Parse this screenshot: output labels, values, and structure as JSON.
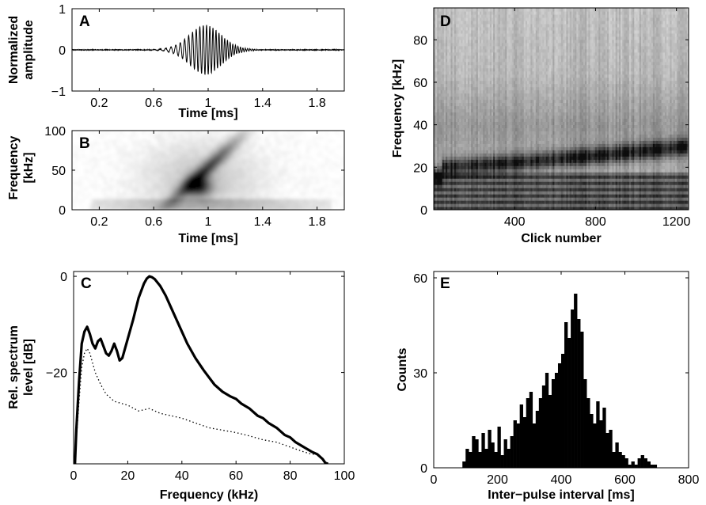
{
  "chart_data": [
    {
      "panel": "A",
      "type": "line",
      "title": "",
      "xlabel": "Time [ms]",
      "ylabel_lines": [
        "Normalized",
        "amplitude"
      ],
      "xlim": [
        0.0,
        2.0
      ],
      "ylim": [
        -1,
        1
      ],
      "xticks": [
        0.2,
        0.6,
        1,
        1.4,
        1.8
      ],
      "yticks": [
        -1,
        0,
        1
      ],
      "waveform": {
        "center_ms": 0.98,
        "width_ms": 0.16,
        "peak_amplitude": 0.55,
        "start_freq_khz": 22,
        "end_freq_khz": 60,
        "pre_onset_ms": 0.55,
        "post_tail_ms": 1.35
      },
      "series": [
        {
          "values_description": ""
        }
      ]
    },
    {
      "panel": "B",
      "type": "heatmap",
      "xlabel": "Time [ms]",
      "ylabel_lines": [
        "Frequency",
        "[kHz]"
      ],
      "xlim": [
        0.0,
        2.0
      ],
      "ylim": [
        0,
        100
      ],
      "xticks": [
        0.2,
        0.6,
        1,
        1.4,
        1.8
      ],
      "yticks": [
        0,
        50,
        100
      ],
      "colormap": "gray_reversed",
      "sweep": {
        "start_time_ms": 0.72,
        "end_time_ms": 1.2,
        "start_freq_khz": 10,
        "end_freq_khz": 85,
        "peak_time_ms": 0.93,
        "peak_freq_khz": 30
      }
    },
    {
      "panel": "C",
      "type": "line",
      "xlabel": "Frequency (kHz)",
      "ylabel_lines": [
        "Rel. spectrum",
        "level [dB]"
      ],
      "xlim": [
        0,
        100
      ],
      "ylim": [
        -39,
        1
      ],
      "xticks": [
        0,
        20,
        40,
        60,
        80,
        100
      ],
      "yticks": [
        0,
        -20
      ],
      "series": [
        {
          "style": "solid",
          "x": [
            0.5,
            1,
            2,
            3,
            4,
            5,
            6,
            7,
            8,
            9,
            10,
            11,
            12,
            13,
            14,
            15,
            16,
            17,
            18,
            20,
            22,
            24,
            26,
            27,
            28,
            29,
            30,
            32,
            34,
            36,
            38,
            40,
            42,
            45,
            48,
            50,
            52,
            55,
            58,
            60,
            62,
            65,
            68,
            70,
            72,
            75,
            78,
            80,
            82,
            85,
            88,
            90,
            92,
            93,
            94
          ],
          "y": [
            -39,
            -32,
            -22,
            -14,
            -11.5,
            -10.5,
            -12,
            -14,
            -15,
            -13.5,
            -13,
            -14.5,
            -16,
            -16.5,
            -15.5,
            -14,
            -15.5,
            -17.5,
            -17,
            -13,
            -9,
            -4.5,
            -1.5,
            -0.5,
            0,
            -0.2,
            -0.6,
            -2,
            -4,
            -6.5,
            -9,
            -11.5,
            -14,
            -17,
            -19.5,
            -21,
            -22.5,
            -24,
            -25,
            -25.5,
            -26.5,
            -27.5,
            -29,
            -29.5,
            -30.5,
            -31.5,
            -33,
            -33.5,
            -34.5,
            -35.5,
            -36.5,
            -37,
            -38,
            -38.8,
            -39
          ]
        },
        {
          "style": "dotted",
          "x": [
            0.5,
            1,
            2,
            3,
            4,
            5,
            6,
            7,
            8,
            10,
            12,
            15,
            18,
            20,
            24,
            28,
            32,
            36,
            40,
            45,
            50,
            55,
            60,
            65,
            70,
            75,
            80,
            85,
            88,
            90,
            92,
            93
          ],
          "y": [
            -39,
            -34,
            -26,
            -19,
            -16,
            -15,
            -16,
            -18,
            -20,
            -22.5,
            -24.5,
            -26,
            -26.5,
            -26.8,
            -28,
            -27.5,
            -28.5,
            -29,
            -29.5,
            -30.5,
            -31.5,
            -32,
            -32.5,
            -33.2,
            -34,
            -34.5,
            -35.5,
            -36.5,
            -37,
            -37,
            -38,
            -39
          ]
        }
      ]
    },
    {
      "panel": "D",
      "type": "heatmap",
      "xlabel": "Click number",
      "ylabel": "Frequency [kHz]",
      "xlim": [
        0,
        1260
      ],
      "ylim": [
        0,
        95
      ],
      "xticks": [
        400,
        800,
        1200
      ],
      "yticks": [
        0,
        20,
        40,
        60,
        80
      ],
      "colormap": "gray_reversed",
      "peak_band": {
        "start_freq_khz": 20,
        "end_freq_khz": 30,
        "width_khz": 4
      }
    },
    {
      "panel": "E",
      "type": "bar",
      "xlabel": "Inter−pulse interval [ms]",
      "ylabel": "Counts",
      "xlim": [
        0,
        800
      ],
      "ylim": [
        0,
        62
      ],
      "xticks": [
        0,
        200,
        400,
        600,
        800
      ],
      "yticks": [
        0,
        30,
        60
      ],
      "bin_width": 10,
      "bin_starts": [
        90,
        100,
        110,
        120,
        130,
        140,
        150,
        160,
        170,
        180,
        190,
        200,
        210,
        220,
        230,
        240,
        250,
        260,
        270,
        280,
        290,
        300,
        310,
        320,
        330,
        340,
        350,
        360,
        370,
        380,
        390,
        400,
        410,
        420,
        430,
        440,
        450,
        460,
        470,
        480,
        490,
        500,
        510,
        520,
        530,
        540,
        550,
        560,
        570,
        580,
        590,
        600,
        610,
        620,
        630,
        640,
        650,
        660,
        670,
        680,
        690
      ],
      "counts": [
        2,
        6,
        5,
        10,
        9,
        5,
        11,
        6,
        12,
        8,
        5,
        13,
        4,
        9,
        6,
        10,
        15,
        14,
        20,
        16,
        22,
        24,
        14,
        18,
        22,
        26,
        30,
        23,
        28,
        30,
        33,
        36,
        46,
        41,
        50,
        55,
        47,
        43,
        28,
        22,
        17,
        14,
        21,
        15,
        19,
        11,
        12,
        5,
        8,
        5,
        4,
        3,
        1,
        2,
        1,
        3,
        4,
        3,
        2,
        1,
        1
      ]
    }
  ]
}
